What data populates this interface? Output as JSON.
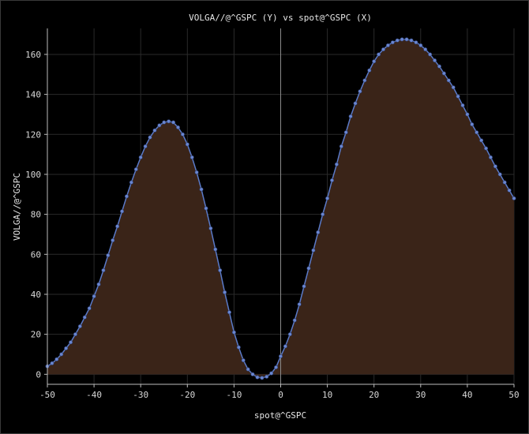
{
  "chart_data": {
    "type": "area",
    "title": "VOLGA//@^GSPC (Y) vs spot@^GSPC (X)",
    "xlabel": "spot@^GSPC",
    "ylabel": "VOLGA//@^GSPC",
    "xlim": [
      -50,
      50
    ],
    "ylim": [
      -5,
      173
    ],
    "x_ticks": [
      -50,
      -40,
      -30,
      -20,
      -10,
      0,
      10,
      20,
      30,
      40,
      50
    ],
    "y_ticks": [
      0,
      20,
      40,
      60,
      80,
      100,
      120,
      140,
      160
    ],
    "grid": true,
    "legend": "none",
    "series": [
      {
        "x": [
          -50,
          -49,
          -48,
          -47,
          -46,
          -45,
          -44,
          -43,
          -42,
          -41,
          -40,
          -39,
          -38,
          -37,
          -36,
          -35,
          -34,
          -33,
          -32,
          -31,
          -30,
          -29,
          -28,
          -27,
          -26,
          -25,
          -24,
          -23,
          -22,
          -21,
          -20,
          -19,
          -18,
          -17,
          -16,
          -15,
          -14,
          -13,
          -12,
          -11,
          -10,
          -9,
          -8,
          -7,
          -6,
          -5,
          -4,
          -3,
          -2,
          -1,
          0,
          1,
          2,
          3,
          4,
          5,
          6,
          7,
          8,
          9,
          10,
          11,
          12,
          13,
          14,
          15,
          16,
          17,
          18,
          19,
          20,
          21,
          22,
          23,
          24,
          25,
          26,
          27,
          28,
          29,
          30,
          31,
          32,
          33,
          34,
          35,
          36,
          37,
          38,
          39,
          40,
          41,
          42,
          43,
          44,
          45,
          46,
          47,
          48,
          49,
          50
        ],
        "values": [
          4,
          5.5,
          7.5,
          10,
          13,
          16,
          20,
          24,
          28.5,
          33,
          39,
          45,
          52,
          59.5,
          67,
          74,
          81.5,
          89,
          96,
          102.5,
          108.5,
          114,
          118.5,
          122,
          124.5,
          126,
          126.5,
          126,
          123.5,
          120,
          115,
          108.5,
          101,
          92.5,
          83,
          73,
          62.5,
          52,
          41,
          31,
          21,
          13.5,
          7,
          2.5,
          0,
          -1.5,
          -1.8,
          -1.2,
          0.5,
          3.5,
          9,
          14,
          20,
          27,
          35,
          44,
          53,
          62,
          71,
          80,
          88,
          97,
          105,
          114,
          121,
          129,
          135.5,
          141.5,
          147,
          152,
          156.5,
          160,
          162.5,
          164.5,
          166,
          167,
          167.5,
          167.5,
          167,
          166,
          164.5,
          162.5,
          160,
          157,
          154,
          150.5,
          147,
          143.5,
          139,
          134.5,
          130,
          125,
          121,
          117,
          113,
          108.5,
          104,
          100,
          96,
          92,
          88
        ],
        "line_color": "#5a7ac8",
        "marker_color": "#6a86d0",
        "fill_color": "#3a2418"
      }
    ],
    "zero_line_x": 0,
    "colors": {
      "background": "#000000",
      "grid": "#2a2a2a",
      "axis": "#bdbdbd",
      "zero_line": "#8a8a8a"
    }
  }
}
